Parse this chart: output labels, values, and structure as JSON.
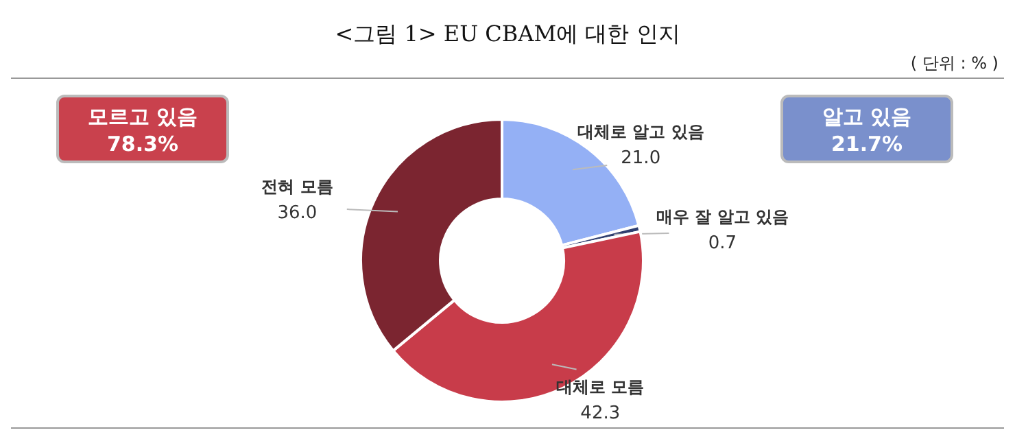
{
  "chart_data": {
    "type": "donut",
    "title": "<그림 1> EU CBAM에 대한 인지",
    "subtitle": "( 단위 : % )",
    "categories": [
      "대체로 알고 있음",
      "매우 잘 알고 있음",
      "대체로 모름",
      "전혀 모름"
    ],
    "values": [
      21.0,
      0.7,
      42.3,
      36.0
    ],
    "colors": [
      "#94b0f5",
      "#2f3f70",
      "#c83c4a",
      "#7b2530"
    ],
    "value_labels": [
      "21.0",
      "0.7",
      "42.3",
      "36.0"
    ],
    "annotations": [
      "모르고 있음 78.3%",
      "알고 있음 21.7%"
    ]
  }
}
